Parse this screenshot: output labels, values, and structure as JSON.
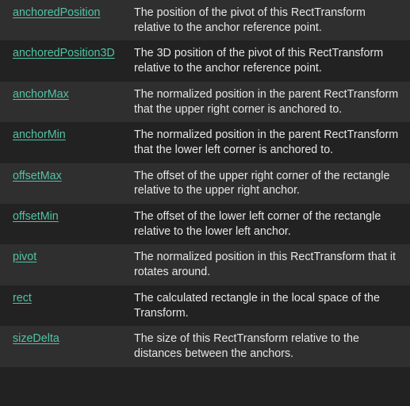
{
  "properties": [
    {
      "name": "anchoredPosition",
      "description": "The position of the pivot of this RectTransform relative to the anchor reference point."
    },
    {
      "name": "anchoredPosition3D",
      "description": "The 3D position of the pivot of this RectTransform relative to the anchor reference point."
    },
    {
      "name": "anchorMax",
      "description": "The normalized position in the parent RectTransform that the upper right corner is anchored to."
    },
    {
      "name": "anchorMin",
      "description": "The normalized position in the parent RectTransform that the lower left corner is anchored to."
    },
    {
      "name": "offsetMax",
      "description": "The offset of the upper right corner of the rectangle relative to the upper right anchor."
    },
    {
      "name": "offsetMin",
      "description": "The offset of the lower left corner of the rectangle relative to the lower left anchor."
    },
    {
      "name": "pivot",
      "description": "The normalized position in this RectTransform that it rotates around."
    },
    {
      "name": "rect",
      "description": "The calculated rectangle in the local space of the Transform."
    },
    {
      "name": "sizeDelta",
      "description": "The size of this RectTransform relative to the distances between the anchors."
    }
  ],
  "colors": {
    "background": "#222222",
    "row_alt": "#2f2f2f",
    "link": "#52c3a3",
    "text": "#e6e6e6"
  }
}
